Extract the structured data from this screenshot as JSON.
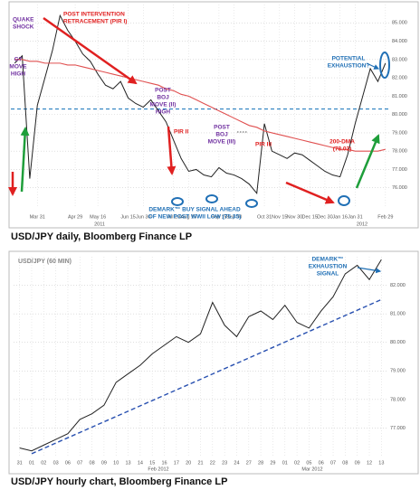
{
  "chart_data": [
    {
      "type": "line",
      "caption": "USD/JPY daily, Bloomberg Finance LP",
      "categories": [
        null,
        null,
        null,
        "Mar 31",
        null,
        null,
        null,
        null,
        "Apr 29",
        null,
        null,
        "May 16",
        null,
        null,
        null,
        "Jun 15",
        null,
        "Jun 30",
        null,
        null,
        null,
        "Jul 29",
        null,
        "Aug 15",
        null,
        null,
        null,
        "Sep 15",
        null,
        "Sep 30",
        null,
        null,
        null,
        "Oct 31",
        null,
        "Nov 15",
        null,
        "Nov 30",
        null,
        "Dec 15",
        null,
        "Dec 30",
        null,
        "Jan 16",
        null,
        "Jan 31",
        null,
        null,
        null,
        "Feb 29"
      ],
      "years": [
        "2011",
        "2012"
      ],
      "series": [
        {
          "name": "USD/JPY",
          "color": "#222222",
          "values": [
            82.8,
            83.2,
            76.5,
            80.5,
            82.0,
            83.5,
            85.4,
            84.6,
            84.0,
            83.3,
            82.9,
            82.2,
            81.6,
            81.4,
            81.8,
            80.9,
            80.6,
            80.4,
            80.8,
            80.2,
            79.6,
            78.6,
            77.6,
            76.9,
            77.0,
            76.7,
            76.6,
            77.1,
            76.8,
            76.7,
            76.5,
            76.2,
            75.7,
            79.5,
            78.0,
            77.8,
            77.6,
            77.9,
            77.8,
            77.5,
            77.2,
            76.9,
            76.7,
            76.6,
            77.8,
            79.5,
            81.0,
            82.5,
            81.8,
            82.8
          ]
        },
        {
          "name": "200-DMA",
          "color": "#e05050",
          "values": [
            83.0,
            83.0,
            82.9,
            82.9,
            82.8,
            82.8,
            82.8,
            82.7,
            82.7,
            82.6,
            82.5,
            82.4,
            82.3,
            82.2,
            82.1,
            82.0,
            81.9,
            81.8,
            81.7,
            81.6,
            81.4,
            81.3,
            81.1,
            81.0,
            80.8,
            80.6,
            80.4,
            80.2,
            80.0,
            79.8,
            79.6,
            79.4,
            79.3,
            79.1,
            79.0,
            78.9,
            78.8,
            78.7,
            78.6,
            78.5,
            78.4,
            78.3,
            78.2,
            78.1,
            78.1,
            78.0,
            78.0,
            78.0,
            78.0,
            78.1
          ]
        }
      ],
      "hline": {
        "value": 80.3,
        "color": "#2a7fc0"
      },
      "ylim": [
        75,
        86
      ],
      "yticks": [
        {
          "value": 76,
          "label": "76.000"
        },
        {
          "value": 77,
          "label": "77.000"
        },
        {
          "value": 78,
          "label": "78.000"
        },
        {
          "value": 79,
          "label": "79.000"
        },
        {
          "value": 80,
          "label": "80.000"
        },
        {
          "value": 81,
          "label": "81.000"
        },
        {
          "value": 82,
          "label": "82.000"
        },
        {
          "value": 83,
          "label": "83.000"
        },
        {
          "value": 84,
          "label": "84.000"
        },
        {
          "value": 85,
          "label": "85.000"
        }
      ],
      "grid": true,
      "annotations": [
        {
          "lines": [
            "QUAKE",
            "SHOCK"
          ],
          "color": "#7030a0"
        },
        {
          "lines": [
            "G7",
            "MOVE",
            "HIGH"
          ],
          "color": "#7030a0"
        },
        {
          "lines": [
            "POST INTERVENTION",
            "RETRACEMENT (PIR I)"
          ],
          "color": "#e02020"
        },
        {
          "lines": [
            "POST",
            "BOJ",
            "MOVE (II)",
            "HIGH"
          ],
          "color": "#7030a0"
        },
        {
          "lines": [
            "PIR II"
          ],
          "color": "#e02020"
        },
        {
          "lines": [
            "POST",
            "BOJ",
            "MOVE (III)"
          ],
          "color": "#7030a0"
        },
        {
          "lines": [
            "PIR III"
          ],
          "color": "#e02020"
        },
        {
          "lines": [
            "200-DMA",
            "(78.02)"
          ],
          "color": "#e02020"
        },
        {
          "lines": [
            "POTENTIAL",
            "EXHAUSTION?"
          ],
          "color": "#1f6fb5"
        },
        {
          "lines": [
            "DEMARK™ BUY SIGNAL AHEAD",
            "OF NEW POST WWII LOW (75.35)"
          ],
          "color": "#1f6fb5"
        }
      ]
    },
    {
      "type": "line",
      "title": "USD/JPY (60 MIN)",
      "caption": "USD/JPY hourly chart, Bloomberg Finance LP",
      "categories": [
        "31",
        "01",
        "02",
        "03",
        "06",
        "07",
        "08",
        "09",
        "10",
        "13",
        "14",
        "15",
        "16",
        "17",
        "20",
        "21",
        "22",
        "23",
        "24",
        "27",
        "28",
        "29",
        "01",
        "02",
        "05",
        "06",
        "07",
        "08",
        "09",
        "12",
        "13"
      ],
      "months": [
        "Feb 2012",
        "Mar 2012"
      ],
      "series": [
        {
          "name": "USD/JPY",
          "color": "#222222",
          "values": [
            76.3,
            76.2,
            76.4,
            76.6,
            76.8,
            77.3,
            77.5,
            77.8,
            78.6,
            78.9,
            79.2,
            79.6,
            79.9,
            80.2,
            80.0,
            80.3,
            81.4,
            80.6,
            80.2,
            80.9,
            81.1,
            80.8,
            81.3,
            80.7,
            80.5,
            81.1,
            81.6,
            82.4,
            82.7,
            82.2,
            82.9
          ]
        }
      ],
      "trendline": {
        "start": 76.1,
        "end": 81.5,
        "color": "#2850b0"
      },
      "ylim": [
        76,
        83
      ],
      "yticks": [
        {
          "value": 77,
          "label": "77.000"
        },
        {
          "value": 78,
          "label": "78.000"
        },
        {
          "value": 79,
          "label": "79.000"
        },
        {
          "value": 80,
          "label": "80.000"
        },
        {
          "value": 81,
          "label": "81.000"
        },
        {
          "value": 82,
          "label": "82.000"
        }
      ],
      "grid": true,
      "annotations": [
        {
          "lines": [
            "DEMARK™",
            "EXHAUSTION",
            "SIGNAL"
          ],
          "color": "#1f6fb5"
        }
      ]
    }
  ]
}
